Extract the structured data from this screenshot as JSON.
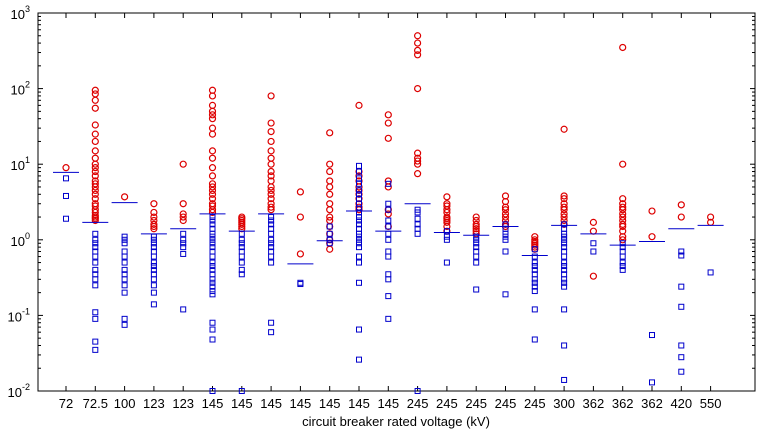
{
  "chart_data": {
    "type": "scatter",
    "title": "",
    "xlabel": "circuit breaker rated voltage (kV)",
    "ylabel": "",
    "yscale": "log",
    "ylim": [
      0.01,
      1000
    ],
    "y_ticks": [
      {
        "value": 0.01,
        "base": "10",
        "exp": "-2"
      },
      {
        "value": 0.1,
        "base": "10",
        "exp": "-1"
      },
      {
        "value": 1,
        "base": "10",
        "exp": "0"
      },
      {
        "value": 10,
        "base": "10",
        "exp": "1"
      },
      {
        "value": 100,
        "base": "10",
        "exp": "2"
      },
      {
        "value": 1000,
        "base": "10",
        "exp": "3"
      }
    ],
    "categories": [
      "72",
      "72.5",
      "100",
      "123",
      "123",
      "145",
      "145",
      "145",
      "145",
      "145",
      "145",
      "145",
      "245",
      "245",
      "245",
      "245",
      "245",
      "300",
      "362",
      "362",
      "362",
      "420",
      "550"
    ],
    "grid": false,
    "legend": "none",
    "colors": {
      "upper": "#dd0000",
      "lower": "#0000cc",
      "mean": "#0000cc",
      "axis": "#000000"
    },
    "series": [
      {
        "marker": "circle",
        "color": "#dd0000",
        "values": [
          [
            9
          ],
          [
            95,
            85,
            70,
            55,
            33,
            25,
            20,
            15,
            12,
            10,
            9,
            8,
            7,
            6,
            5.5,
            5,
            4.5,
            4,
            3.5,
            3,
            2.8,
            2.5,
            2.3,
            2.1,
            2,
            1.9,
            1.8
          ],
          [
            3.7
          ],
          [
            3,
            2.3,
            2,
            1.8,
            1.6,
            1.5,
            1.4
          ],
          [
            10,
            3,
            2.2,
            2,
            1.8
          ],
          [
            95,
            80,
            60,
            50,
            45,
            40,
            30,
            25,
            15,
            12,
            9,
            7,
            5.5,
            5,
            4.5,
            4,
            3.5,
            3,
            2.8,
            2.5,
            2.3
          ],
          [
            2,
            1.9,
            1.8,
            1.7,
            1.6,
            1.5,
            1.4
          ],
          [
            80,
            35,
            27,
            20,
            15,
            12,
            10,
            8,
            7,
            6,
            5,
            4.5,
            4,
            3.5,
            3,
            2.7,
            2.5
          ],
          [
            4.3,
            2,
            0.65
          ],
          [
            26,
            10,
            8,
            6,
            5,
            4,
            3,
            2.5,
            2,
            1.8,
            1.5,
            1.2,
            1,
            0.9,
            0.75
          ],
          [
            60,
            8,
            7,
            6,
            5,
            4.5,
            4,
            3.5,
            3,
            2.7,
            2.5
          ],
          [
            45,
            35,
            22,
            6,
            5,
            2.5,
            2.2,
            1.5
          ],
          [
            500,
            400,
            320,
            280,
            100,
            14,
            12,
            11,
            10,
            7.5
          ],
          [
            3.7,
            3,
            2.8,
            2.5,
            2.3,
            2,
            1.9,
            1.8,
            1.7,
            1.5,
            1.3
          ],
          [
            2,
            1.8,
            1.6,
            1.5,
            1.4,
            1.3,
            1.2
          ],
          [
            3.8,
            3.2,
            2.7,
            2.5,
            2.2,
            2,
            1.8,
            1.6,
            1.5
          ],
          [
            1.1,
            1,
            0.95,
            0.9,
            0.85,
            0.8,
            0.75
          ],
          [
            29,
            3.8,
            3.5,
            3,
            2.7,
            2.5,
            2.2,
            2,
            1.8,
            1.6
          ],
          [
            1.7,
            1.3,
            0.33
          ],
          [
            350,
            10,
            3.5,
            3,
            2.7,
            2.5,
            2.2,
            2,
            1.8,
            1.6,
            1.5,
            1.3,
            1.1,
            1
          ],
          [
            2.4,
            1.1
          ],
          [
            2.9,
            2
          ],
          [
            2,
            1.7
          ]
        ]
      },
      {
        "marker": "square",
        "color": "#0000cc",
        "values": [
          [
            6.5,
            3.8,
            1.9
          ],
          [
            1.2,
            1,
            0.9,
            0.8,
            0.7,
            0.6,
            0.5,
            0.4,
            0.35,
            0.3,
            0.25,
            0.11,
            0.09,
            0.045,
            0.035
          ],
          [
            1.1,
            1,
            0.9,
            0.7,
            0.6,
            0.5,
            0.4,
            0.35,
            0.3,
            0.25,
            0.2,
            0.09,
            0.075
          ],
          [
            1.1,
            1,
            0.9,
            0.8,
            0.7,
            0.6,
            0.5,
            0.45,
            0.4,
            0.35,
            0.3,
            0.25,
            0.2,
            0.14
          ],
          [
            1.2,
            1,
            0.9,
            0.8,
            0.65,
            0.12
          ],
          [
            2,
            1.8,
            1.6,
            1.4,
            1.2,
            1.1,
            1,
            0.9,
            0.8,
            0.7,
            0.6,
            0.5,
            0.45,
            0.4,
            0.35,
            0.3,
            0.27,
            0.24,
            0.21,
            0.19,
            0.08,
            0.065,
            0.048,
            0.01
          ],
          [
            1.2,
            1,
            0.9,
            0.8,
            0.7,
            0.6,
            0.5,
            0.4,
            0.35,
            0.01
          ],
          [
            2,
            1.8,
            1.6,
            1.4,
            1.2,
            1,
            0.9,
            0.8,
            0.7,
            0.6,
            0.5,
            0.08,
            0.06
          ],
          [
            0.27,
            0.26
          ],
          [
            1.5,
            1.2,
            1,
            0.9
          ],
          [
            9.5,
            8,
            6.5,
            5.5,
            4.5,
            4,
            3.5,
            3,
            2.6,
            2.3,
            2,
            1.8,
            1.6,
            1.4,
            1.2,
            1.1,
            1,
            0.9,
            0.8,
            0.6,
            0.5,
            0.27,
            0.065,
            0.026
          ],
          [
            5.5,
            3,
            2.5,
            1.8,
            1.5,
            1.2,
            1,
            0.7,
            0.6,
            0.35,
            0.3,
            0.18,
            0.09
          ],
          [
            2.5,
            2.3,
            1.9,
            1.6,
            1.4,
            1.2,
            0.01
          ],
          [
            1.3,
            1.1,
            1,
            0.5
          ],
          [
            1.1,
            1,
            0.9,
            0.8,
            0.7,
            0.6,
            0.5,
            0.22
          ],
          [
            1.6,
            1.4,
            1.2,
            1.1,
            1,
            0.7,
            0.19
          ],
          [
            0.75,
            0.6,
            0.5,
            0.45,
            0.4,
            0.35,
            0.3,
            0.27,
            0.24,
            0.21,
            0.12,
            0.048
          ],
          [
            1.6,
            1.4,
            1.2,
            1.1,
            1,
            0.9,
            0.8,
            0.7,
            0.6,
            0.5,
            0.45,
            0.4,
            0.35,
            0.3,
            0.27,
            0.24,
            0.12,
            0.04,
            0.014
          ],
          [
            0.9,
            0.7
          ],
          [
            0.9,
            0.8,
            0.7,
            0.6,
            0.5,
            0.45,
            0.4
          ],
          [
            0.055,
            0.013
          ],
          [
            0.7,
            0.62,
            0.24,
            0.13,
            0.04,
            0.028,
            0.018
          ],
          [
            0.37
          ]
        ]
      },
      {
        "marker": "hline",
        "color": "#0000cc",
        "values": [
          7.8,
          1.7,
          3.1,
          1.2,
          1.4,
          2.2,
          1.3,
          2.2,
          0.48,
          0.97,
          2.4,
          1.3,
          3.0,
          1.25,
          1.15,
          1.5,
          0.62,
          1.55,
          1.2,
          0.85,
          0.95,
          1.4,
          1.55
        ]
      }
    ]
  }
}
